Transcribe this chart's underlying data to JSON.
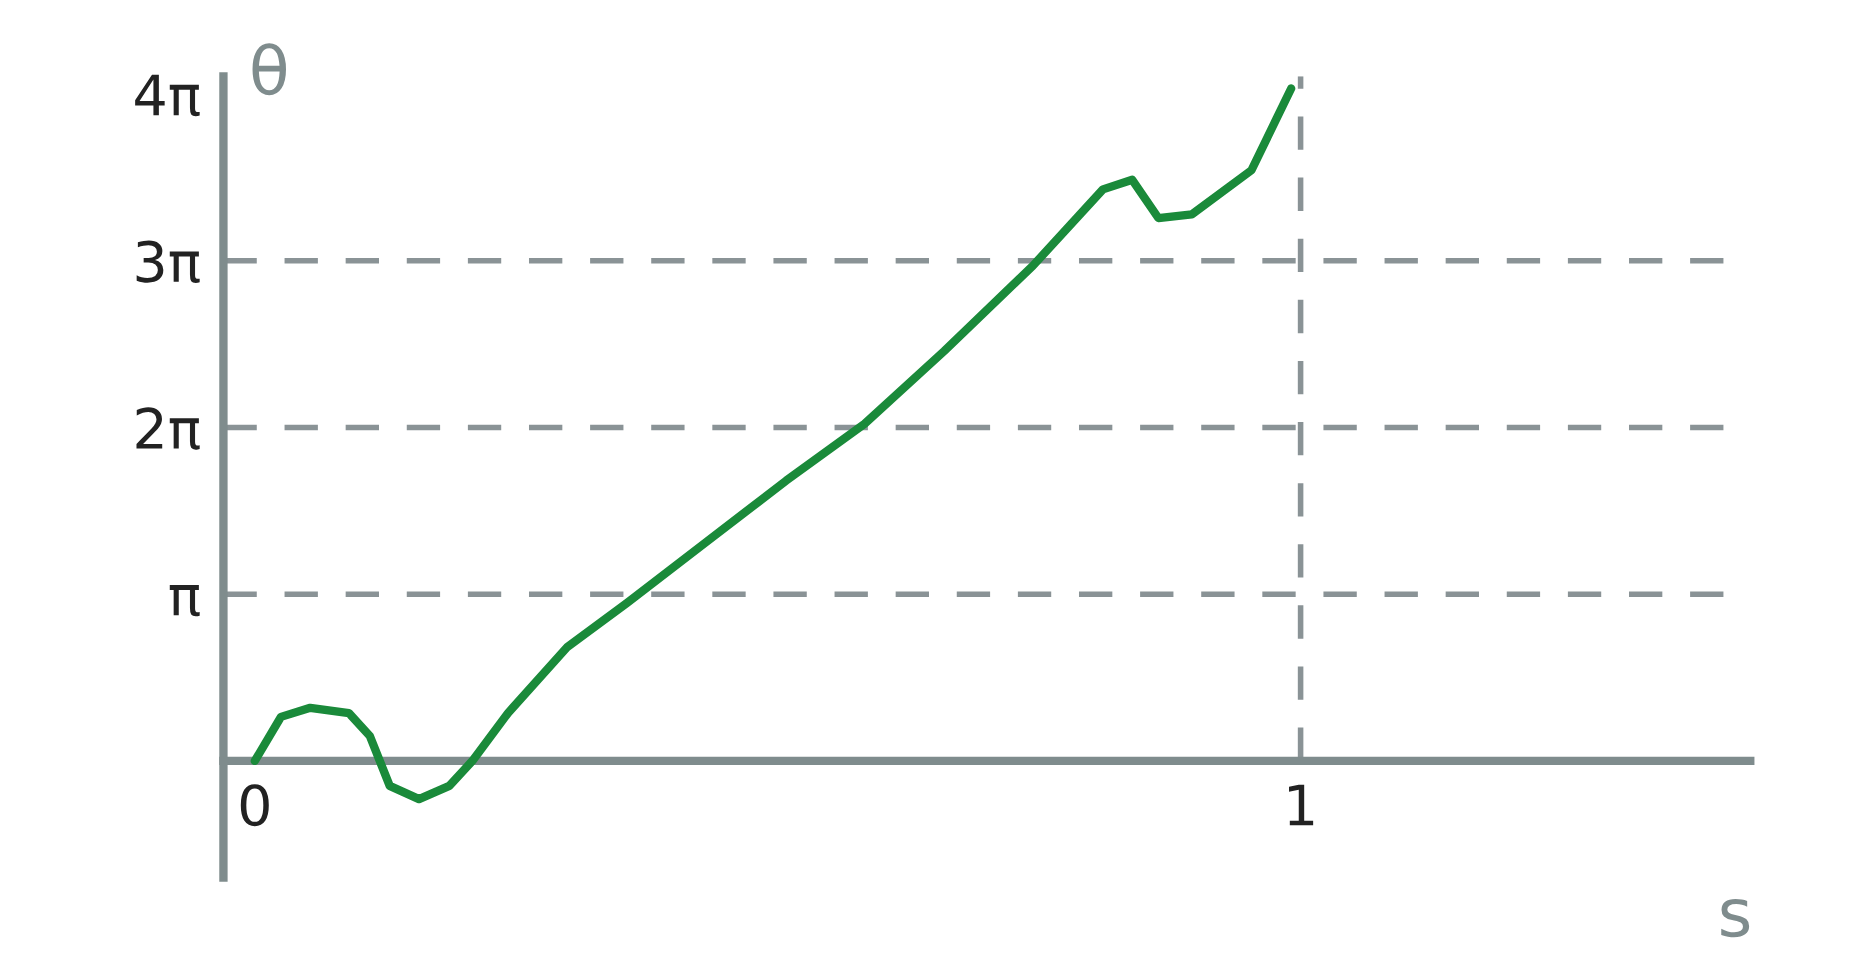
{
  "chart_data": {
    "type": "line",
    "xlabel": "s",
    "ylabel": "θ",
    "x": [
      0,
      0.025,
      0.053,
      0.09,
      0.11,
      0.129,
      0.157,
      0.186,
      0.208,
      0.242,
      0.299,
      0.356,
      0.432,
      0.508,
      0.583,
      0.659,
      0.744,
      0.811,
      0.839,
      0.864,
      0.896,
      0.953,
      0.991
    ],
    "series": [
      {
        "color": "#1a8a3a",
        "values": [
          0,
          0.83,
          1.0,
          0.9,
          0.47,
          -0.47,
          -0.72,
          -0.47,
          0,
          0.9,
          2.15,
          2.98,
          4.13,
          5.28,
          6.35,
          7.72,
          9.33,
          10.77,
          10.95,
          10.23,
          10.3,
          11.13,
          12.67
        ]
      }
    ],
    "xlim": [
      -0.03,
      1.43
    ],
    "ylim": [
      -2.2,
      12.9
    ],
    "xticks": [
      0,
      1
    ],
    "yticks": [
      {
        "value": 3.1416,
        "label": "π"
      },
      {
        "value": 6.2832,
        "label": "2π"
      },
      {
        "value": 9.4248,
        "label": "3π"
      },
      {
        "value": 12.5664,
        "label": "4π"
      }
    ],
    "ref_lines": [
      {
        "axis": "y",
        "value": 3.1416,
        "color": "#8a9396",
        "line_style": "dashed"
      },
      {
        "axis": "y",
        "value": 6.2832,
        "color": "#8a9396",
        "line_style": "dashed"
      },
      {
        "axis": "y",
        "value": 9.4248,
        "color": "#8a9396",
        "line_style": "dashed"
      },
      {
        "axis": "x",
        "value": 1,
        "color": "#8a9396",
        "line_style": "dashed"
      }
    ],
    "grid": false,
    "marker": "none",
    "line_style": "solid"
  }
}
